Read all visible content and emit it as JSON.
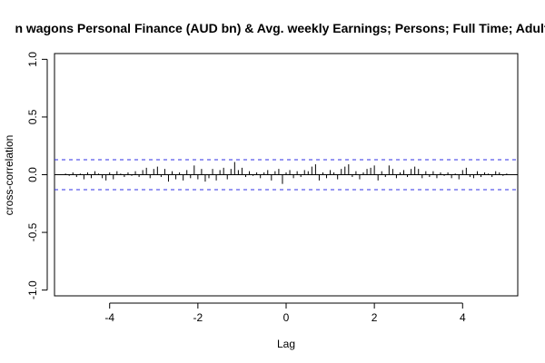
{
  "chart_data": {
    "type": "bar",
    "title": "n wagons Personal Finance (AUD bn) & Avg. weekly Earnings; Persons; Full Time; Adult",
    "xlabel": "Lag",
    "ylabel": "cross-correlation",
    "xlim": [
      -5.25,
      5.25
    ],
    "ylim": [
      -1.05,
      1.05
    ],
    "xticks": [
      -4,
      -2,
      0,
      2,
      4
    ],
    "xtick_labels": [
      "-4",
      "-2",
      "0",
      "2",
      "4"
    ],
    "yticks": [
      -1.0,
      -0.5,
      0.0,
      0.5,
      1.0
    ],
    "ytick_labels": [
      "-1.0",
      "-0.5",
      "0.0",
      "0.5",
      "1.0"
    ],
    "ci": 0.13,
    "colors": {
      "ci": "#2f2fe6",
      "bars": "#000000"
    },
    "lags": [
      -5.0,
      -4.9167,
      -4.8333,
      -4.75,
      -4.6667,
      -4.5833,
      -4.5,
      -4.4167,
      -4.3333,
      -4.25,
      -4.1667,
      -4.0833,
      -4.0,
      -3.9167,
      -3.8333,
      -3.75,
      -3.6667,
      -3.5833,
      -3.5,
      -3.4167,
      -3.3333,
      -3.25,
      -3.1667,
      -3.0833,
      -3.0,
      -2.9167,
      -2.8333,
      -2.75,
      -2.6667,
      -2.5833,
      -2.5,
      -2.4167,
      -2.3333,
      -2.25,
      -2.1667,
      -2.0833,
      -2.0,
      -1.9167,
      -1.8333,
      -1.75,
      -1.6667,
      -1.5833,
      -1.5,
      -1.4167,
      -1.3333,
      -1.25,
      -1.1667,
      -1.0833,
      -1.0,
      -0.9167,
      -0.8333,
      -0.75,
      -0.6667,
      -0.5833,
      -0.5,
      -0.4167,
      -0.3333,
      -0.25,
      -0.1667,
      -0.0833,
      0.0,
      0.0833,
      0.1667,
      0.25,
      0.3333,
      0.4167,
      0.5,
      0.5833,
      0.6667,
      0.75,
      0.8333,
      0.9167,
      1.0,
      1.0833,
      1.1667,
      1.25,
      1.3333,
      1.4167,
      1.5,
      1.5833,
      1.6667,
      1.75,
      1.8333,
      1.9167,
      2.0,
      2.0833,
      2.1667,
      2.25,
      2.3333,
      2.4167,
      2.5,
      2.5833,
      2.6667,
      2.75,
      2.8333,
      2.9167,
      3.0,
      3.0833,
      3.1667,
      3.25,
      3.3333,
      3.4167,
      3.5,
      3.5833,
      3.6667,
      3.75,
      3.8333,
      3.9167,
      4.0,
      4.0833,
      4.1667,
      4.25,
      4.3333,
      4.4167,
      4.5,
      4.5833,
      4.6667,
      4.75,
      4.8333,
      4.9167,
      5.0
    ],
    "values": [
      0.01,
      -0.01,
      0.02,
      -0.02,
      0.01,
      -0.04,
      0.02,
      -0.03,
      0.03,
      0.01,
      -0.03,
      -0.05,
      0.02,
      -0.04,
      0.03,
      0.01,
      -0.02,
      0.02,
      -0.01,
      0.03,
      -0.02,
      0.04,
      0.06,
      -0.03,
      0.05,
      0.07,
      -0.02,
      0.05,
      -0.06,
      0.03,
      -0.04,
      0.02,
      -0.05,
      0.04,
      -0.03,
      0.08,
      -0.04,
      0.05,
      -0.06,
      -0.03,
      0.05,
      -0.05,
      0.04,
      0.06,
      -0.04,
      0.05,
      0.11,
      0.04,
      0.06,
      -0.02,
      0.03,
      -0.01,
      0.02,
      -0.03,
      0.02,
      0.04,
      -0.05,
      0.03,
      0.05,
      -0.08,
      0.02,
      0.04,
      -0.03,
      0.03,
      -0.02,
      0.04,
      0.03,
      0.07,
      0.09,
      -0.05,
      0.02,
      -0.03,
      0.04,
      0.02,
      -0.04,
      0.05,
      0.07,
      0.09,
      -0.02,
      0.03,
      -0.04,
      0.02,
      0.05,
      0.06,
      0.08,
      -0.05,
      0.03,
      -0.02,
      0.08,
      0.05,
      -0.03,
      0.02,
      0.04,
      -0.02,
      0.05,
      0.07,
      0.05,
      -0.03,
      0.03,
      -0.02,
      0.03,
      -0.03,
      0.02,
      -0.01,
      0.02,
      -0.03,
      0.01,
      -0.04,
      0.04,
      0.06,
      -0.02,
      -0.03,
      0.03,
      -0.02,
      0.02,
      0.01,
      -0.02,
      0.03,
      0.02,
      -0.01,
      0.01
    ]
  }
}
